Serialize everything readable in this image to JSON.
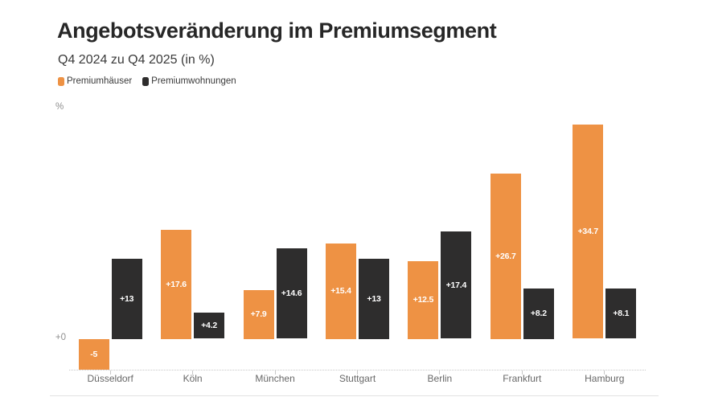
{
  "chart_data": {
    "type": "bar",
    "title": "Angebotsveränderung im Premiumsegment",
    "subtitle": "Q4 2024 zu Q4 2025 (in %)",
    "unit_label": "%",
    "zero_label": "+0",
    "categories": [
      "Düsseldorf",
      "Köln",
      "München",
      "Stuttgart",
      "Berlin",
      "Frankfurt",
      "Hamburg"
    ],
    "series": [
      {
        "name": "Premiumhäuser",
        "color": "#ee9244",
        "values": [
          -5,
          17.6,
          7.9,
          15.4,
          12.5,
          26.7,
          34.7
        ],
        "labels": [
          "-5",
          "+17.6",
          "+7.9",
          "+15.4",
          "+12.5",
          "+26.7",
          "+34.7"
        ]
      },
      {
        "name": "Premiumwohnungen",
        "color": "#2e2d2d",
        "values": [
          13,
          4.2,
          14.6,
          13,
          17.4,
          8.2,
          8.1
        ],
        "labels": [
          "+13",
          "+4.2",
          "+14.6",
          "+13",
          "+17.4",
          "+8.2",
          "+8.1"
        ]
      }
    ],
    "ylim": [
      -5,
      36.6
    ],
    "grid": "dotted baseline at minimum with category tick marks, no other gridlines",
    "legend_position": "top-left",
    "value_label_color": "#ffffff",
    "axis_label_color": "#8f8f8f",
    "category_label_color": "#686868",
    "background_color": "#ffffff"
  }
}
